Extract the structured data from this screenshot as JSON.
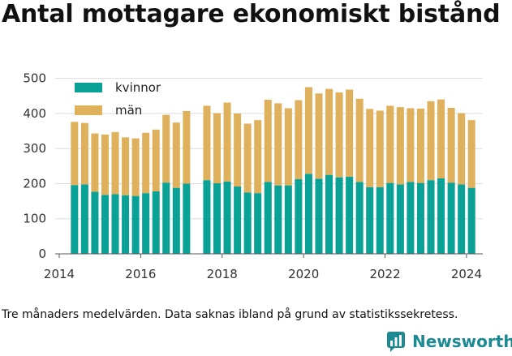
{
  "title": "Antal mottagare ekonomiskt bistånd",
  "note": "Tre månaders medelvärden. Data saknas ibland på grund av statistikssekretess.",
  "brand": {
    "name": "Newsworthy",
    "logo": "newsworthy-logo-icon"
  },
  "colors": {
    "kvinnor": "#0aa196",
    "man": "#dfb15c",
    "grid": "#dddddd",
    "axis": "#555555"
  },
  "chart_data": {
    "type": "bar",
    "stacked": true,
    "title": "Antal mottagare ekonomiskt bistånd",
    "xlabel": "",
    "ylabel": "",
    "ylim": [
      0,
      520
    ],
    "xlim": [
      2013.9,
      2024.4
    ],
    "yticks": [
      0,
      100,
      200,
      300,
      400,
      500
    ],
    "xticks": [
      2014,
      2016,
      2018,
      2020,
      2022,
      2024
    ],
    "grid": true,
    "legend_position": "top-left",
    "x": [
      2014.375,
      2014.625,
      2014.875,
      2015.125,
      2015.375,
      2015.625,
      2015.875,
      2016.125,
      2016.375,
      2016.625,
      2016.875,
      2017.125,
      2017.625,
      2017.875,
      2018.125,
      2018.375,
      2018.625,
      2018.875,
      2019.125,
      2019.375,
      2019.625,
      2019.875,
      2020.125,
      2020.375,
      2020.625,
      2020.875,
      2021.125,
      2021.375,
      2021.625,
      2021.875,
      2022.125,
      2022.375,
      2022.625,
      2022.875,
      2023.125,
      2023.375,
      2023.625,
      2023.875,
      2024.125
    ],
    "series": [
      {
        "name": "kvinnor",
        "color": "#0aa196",
        "values": [
          196,
          198,
          177,
          168,
          170,
          167,
          165,
          173,
          178,
          203,
          188,
          200,
          210,
          201,
          206,
          192,
          175,
          173,
          205,
          195,
          195,
          213,
          228,
          214,
          225,
          218,
          220,
          205,
          190,
          190,
          202,
          198,
          205,
          202,
          210,
          215,
          203,
          198,
          188
        ]
      },
      {
        "name": "män",
        "color": "#dfb15c",
        "values": [
          180,
          175,
          166,
          172,
          177,
          165,
          164,
          172,
          176,
          193,
          186,
          207,
          212,
          200,
          225,
          208,
          196,
          208,
          234,
          234,
          220,
          225,
          247,
          243,
          245,
          242,
          248,
          237,
          223,
          218,
          220,
          220,
          210,
          212,
          225,
          225,
          213,
          203,
          193
        ]
      }
    ]
  }
}
